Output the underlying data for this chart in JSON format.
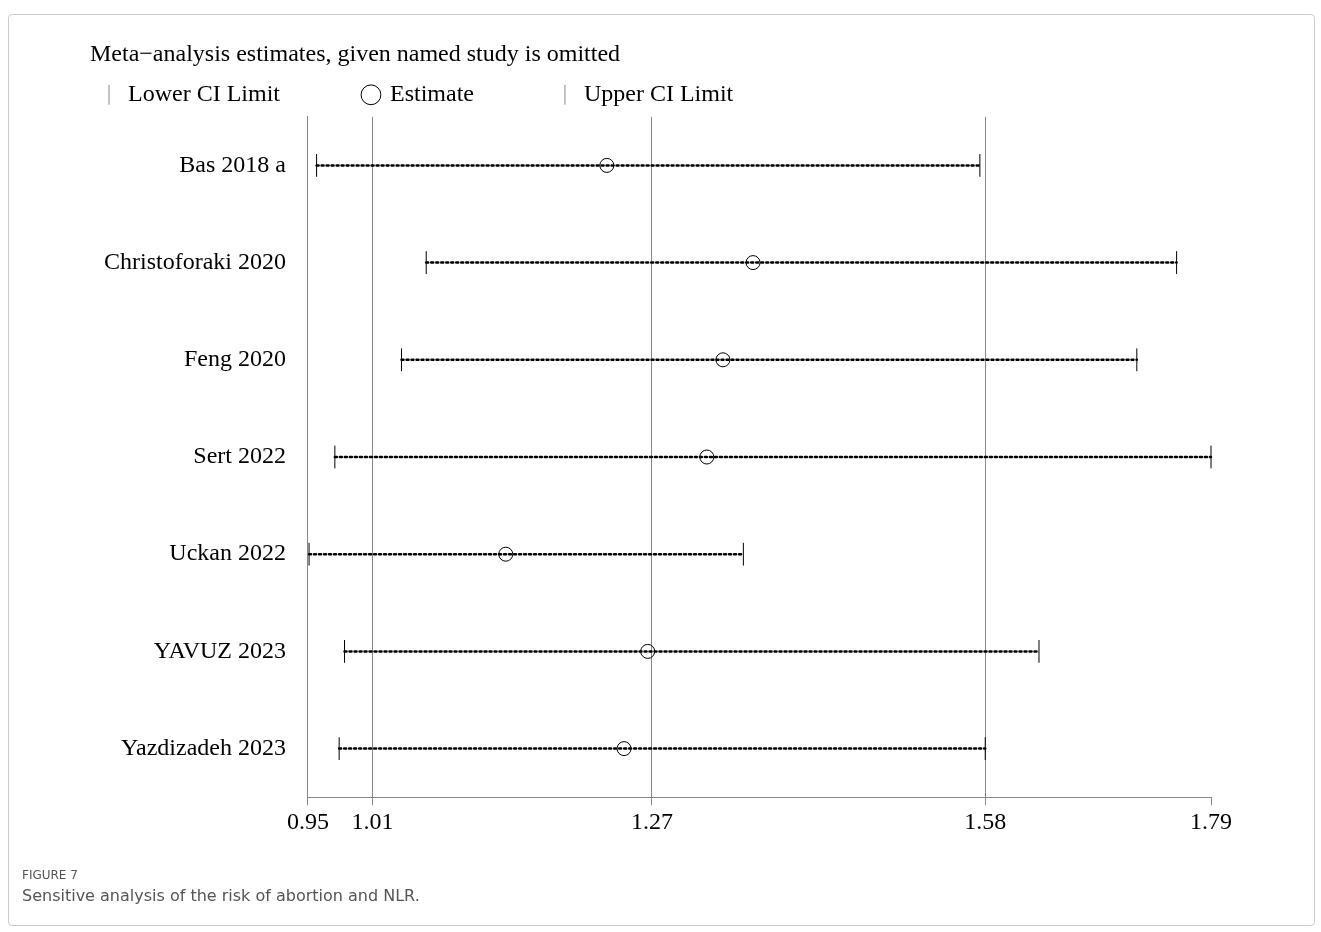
{
  "chart_data": {
    "type": "scatter",
    "orientation": "horizontal",
    "title": "Meta−analysis estimates, given named study is omitted",
    "categories": [
      "Bas 2018 a",
      "Christoforaki 2020",
      "Feng 2020",
      "Sert 2022",
      "Uckan 2022",
      "YAVUZ 2023",
      "Yazdizadeh 2023"
    ],
    "series": [
      {
        "name": "Estimate",
        "color": "#000000",
        "marker": "circle",
        "values": [
          1.228,
          1.364,
          1.336,
          1.321,
          1.134,
          1.266,
          1.244
        ],
        "errors": [
          [
            0.958,
            1.575
          ],
          [
            1.06,
            1.758
          ],
          [
            1.037,
            1.721
          ],
          [
            0.975,
            1.79
          ],
          [
            0.951,
            1.355
          ],
          [
            0.984,
            1.63
          ],
          [
            0.979,
            1.58
          ]
        ]
      }
    ],
    "line_style": "dotted",
    "xlim": [
      0.95,
      1.79
    ],
    "xticks": [
      0.95,
      1.01,
      1.27,
      1.58,
      1.79
    ],
    "grid": "x",
    "legend": "top",
    "annotations": [
      "Lower CI Limit",
      "Upper CI Limit",
      "FIGURE 7",
      "Sensitive analysis of the risk of abortion and NLR."
    ]
  }
}
